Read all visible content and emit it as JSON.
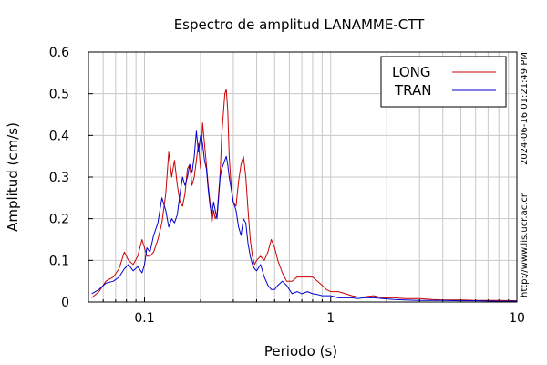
{
  "chart_data": {
    "type": "line",
    "title": "Espectro de amplitud LANAMME-CTT",
    "xlabel": "Periodo (s)",
    "ylabel": "Amplitud (cm/s)",
    "x_scale": "log",
    "xlim": [
      0.05,
      10
    ],
    "ylim": [
      0,
      0.6
    ],
    "x_ticks": [
      {
        "value": 0.1,
        "label": "0.1"
      },
      {
        "value": 1,
        "label": "1"
      },
      {
        "value": 10,
        "label": "10"
      }
    ],
    "y_ticks": [
      {
        "value": 0,
        "label": "0"
      },
      {
        "value": 0.1,
        "label": "0.1"
      },
      {
        "value": 0.2,
        "label": "0.2"
      },
      {
        "value": 0.3,
        "label": "0.3"
      },
      {
        "value": 0.4,
        "label": "0.4"
      },
      {
        "value": 0.5,
        "label": "0.5"
      },
      {
        "value": 0.6,
        "label": "0.6"
      }
    ],
    "grid": true,
    "legend_position": "top-right",
    "series": [
      {
        "name": "LONG",
        "color": "#cc0000",
        "x": [
          0.052,
          0.057,
          0.062,
          0.068,
          0.073,
          0.078,
          0.082,
          0.087,
          0.092,
          0.097,
          0.1,
          0.103,
          0.107,
          0.112,
          0.118,
          0.124,
          0.13,
          0.135,
          0.14,
          0.145,
          0.15,
          0.155,
          0.16,
          0.165,
          0.17,
          0.175,
          0.18,
          0.185,
          0.19,
          0.195,
          0.2,
          0.205,
          0.21,
          0.215,
          0.22,
          0.225,
          0.23,
          0.235,
          0.24,
          0.245,
          0.25,
          0.255,
          0.26,
          0.265,
          0.27,
          0.275,
          0.28,
          0.285,
          0.29,
          0.295,
          0.3,
          0.31,
          0.32,
          0.33,
          0.34,
          0.35,
          0.36,
          0.37,
          0.38,
          0.39,
          0.4,
          0.42,
          0.44,
          0.46,
          0.48,
          0.5,
          0.52,
          0.55,
          0.58,
          0.62,
          0.66,
          0.7,
          0.75,
          0.8,
          0.85,
          0.9,
          0.95,
          1.0,
          1.1,
          1.2,
          1.3,
          1.4,
          1.5,
          1.7,
          1.9,
          2.2,
          2.5,
          3.0,
          3.5,
          4.0,
          5.0,
          6.0,
          8.0,
          10.0
        ],
        "values": [
          0.01,
          0.025,
          0.05,
          0.06,
          0.08,
          0.12,
          0.1,
          0.09,
          0.11,
          0.15,
          0.13,
          0.11,
          0.11,
          0.12,
          0.15,
          0.19,
          0.26,
          0.36,
          0.3,
          0.34,
          0.28,
          0.24,
          0.23,
          0.26,
          0.32,
          0.33,
          0.28,
          0.3,
          0.34,
          0.38,
          0.32,
          0.43,
          0.38,
          0.33,
          0.28,
          0.24,
          0.19,
          0.22,
          0.2,
          0.21,
          0.26,
          0.31,
          0.4,
          0.45,
          0.5,
          0.51,
          0.46,
          0.35,
          0.3,
          0.26,
          0.24,
          0.23,
          0.29,
          0.33,
          0.35,
          0.3,
          0.22,
          0.15,
          0.11,
          0.09,
          0.1,
          0.11,
          0.1,
          0.12,
          0.15,
          0.13,
          0.1,
          0.07,
          0.05,
          0.05,
          0.06,
          0.06,
          0.06,
          0.06,
          0.05,
          0.04,
          0.03,
          0.025,
          0.025,
          0.02,
          0.015,
          0.012,
          0.012,
          0.015,
          0.01,
          0.01,
          0.008,
          0.008,
          0.006,
          0.005,
          0.005,
          0.004,
          0.004,
          0.003
        ]
      },
      {
        "name": "TRAN",
        "color": "#0000cc",
        "x": [
          0.052,
          0.057,
          0.062,
          0.068,
          0.073,
          0.078,
          0.082,
          0.087,
          0.092,
          0.097,
          0.1,
          0.103,
          0.107,
          0.112,
          0.118,
          0.124,
          0.13,
          0.135,
          0.14,
          0.145,
          0.15,
          0.155,
          0.16,
          0.165,
          0.17,
          0.175,
          0.18,
          0.185,
          0.19,
          0.195,
          0.2,
          0.205,
          0.21,
          0.215,
          0.22,
          0.225,
          0.23,
          0.235,
          0.24,
          0.245,
          0.25,
          0.255,
          0.26,
          0.265,
          0.27,
          0.275,
          0.28,
          0.285,
          0.29,
          0.295,
          0.3,
          0.31,
          0.32,
          0.33,
          0.34,
          0.35,
          0.36,
          0.37,
          0.38,
          0.39,
          0.4,
          0.42,
          0.44,
          0.46,
          0.48,
          0.5,
          0.52,
          0.55,
          0.58,
          0.62,
          0.66,
          0.7,
          0.75,
          0.8,
          0.85,
          0.9,
          0.95,
          1.0,
          1.1,
          1.2,
          1.3,
          1.4,
          1.5,
          1.7,
          1.9,
          2.2,
          2.5,
          3.0,
          3.5,
          4.0,
          5.0,
          6.0,
          8.0,
          10.0
        ],
        "values": [
          0.02,
          0.03,
          0.045,
          0.05,
          0.06,
          0.08,
          0.09,
          0.075,
          0.085,
          0.07,
          0.09,
          0.13,
          0.12,
          0.16,
          0.19,
          0.25,
          0.22,
          0.18,
          0.2,
          0.19,
          0.21,
          0.26,
          0.3,
          0.28,
          0.3,
          0.33,
          0.31,
          0.35,
          0.41,
          0.36,
          0.4,
          0.38,
          0.34,
          0.32,
          0.27,
          0.23,
          0.21,
          0.24,
          0.22,
          0.2,
          0.25,
          0.3,
          0.32,
          0.33,
          0.34,
          0.35,
          0.33,
          0.3,
          0.28,
          0.26,
          0.24,
          0.22,
          0.18,
          0.16,
          0.2,
          0.19,
          0.14,
          0.11,
          0.09,
          0.08,
          0.075,
          0.09,
          0.06,
          0.04,
          0.03,
          0.03,
          0.04,
          0.05,
          0.04,
          0.02,
          0.025,
          0.02,
          0.025,
          0.02,
          0.018,
          0.015,
          0.015,
          0.015,
          0.01,
          0.01,
          0.01,
          0.008,
          0.01,
          0.01,
          0.008,
          0.006,
          0.005,
          0.004,
          0.004,
          0.004,
          0.003,
          0.003,
          0.002,
          0.002
        ]
      }
    ]
  },
  "side_labels": {
    "timestamp": "2024-06-16 01:21:49 PM",
    "url": "http://www.lis.ucr.ac.cr"
  }
}
